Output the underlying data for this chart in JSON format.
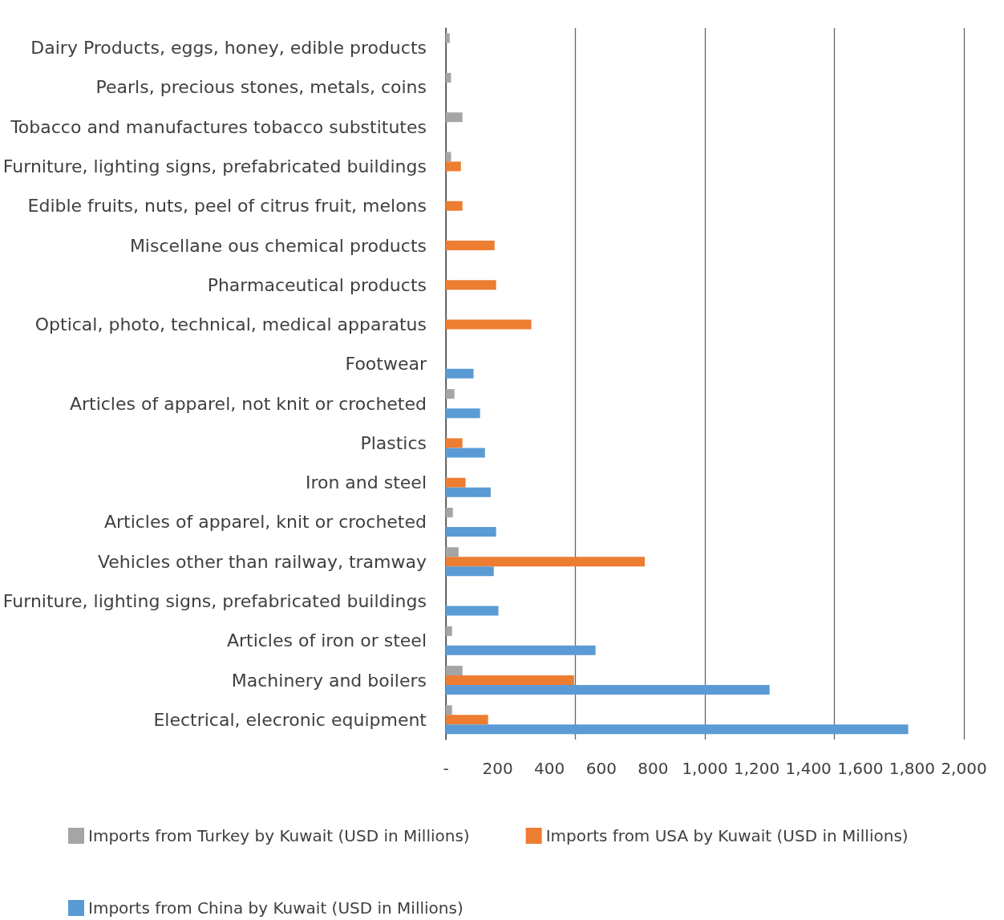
{
  "chart_data": {
    "type": "bar",
    "orientation": "horizontal",
    "categories": [
      "Dairy Products, eggs, honey, edible products",
      "Pearls, precious stones, metals, coins",
      "Tobacco and manufactures tobacco substitutes",
      "Furniture, lighting signs, prefabricated buildings",
      "Edible fruits, nuts, peel of citrus fruit, melons",
      "Miscellane ous chemical products",
      "Pharmaceutical products",
      "Optical, photo, technical, medical apparatus",
      "Footwear",
      "Articles of apparel, not knit or crocheted",
      "Plastics",
      "Iron and steel",
      "Articles of apparel, knit or crocheted",
      "Vehicles other than railway, tramway",
      "Furniture, lighting signs, prefabricated buildings",
      "Articles of iron or steel",
      "Machinery and boilers",
      "Electrical, elecronic equipment"
    ],
    "series": [
      {
        "name": "Imports from Turkey by Kuwait (USD in Millions)",
        "color": "#a5a5a5",
        "values": [
          15,
          20,
          64,
          20,
          null,
          null,
          null,
          null,
          null,
          33,
          null,
          null,
          27,
          49,
          null,
          24,
          64,
          24
        ]
      },
      {
        "name": "Imports from USA by Kuwait (USD in Millions)",
        "color": "#ed7d31",
        "values": [
          null,
          null,
          null,
          58,
          64,
          188,
          194,
          330,
          null,
          null,
          64,
          76,
          null,
          768,
          null,
          null,
          495,
          163
        ]
      },
      {
        "name": "Imports from China by Kuwait (USD in Millions)",
        "color": "#5b9bd5",
        "values": [
          null,
          null,
          null,
          null,
          null,
          null,
          null,
          null,
          107,
          132,
          151,
          173,
          194,
          185,
          203,
          578,
          1250,
          1785
        ]
      }
    ],
    "xlim": [
      0,
      2000
    ],
    "xticks": [
      {
        "value": 0,
        "label": "-"
      },
      200,
      400,
      600,
      800,
      {
        "value": 1000,
        "label": "1,000"
      },
      {
        "value": 1200,
        "label": "1,200"
      },
      {
        "value": 1400,
        "label": "1,400"
      },
      {
        "value": 1600,
        "label": "1,600"
      },
      {
        "value": 1800,
        "label": "1,800"
      },
      {
        "value": 2000,
        "label": "2,000"
      }
    ],
    "grid": "x",
    "legend": "bottom"
  }
}
